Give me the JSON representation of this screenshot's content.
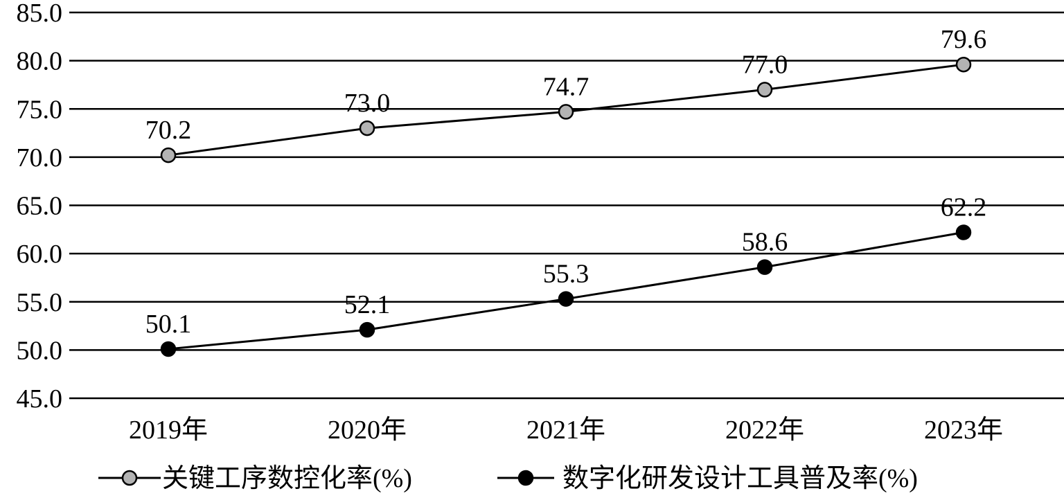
{
  "chart_data": {
    "type": "line",
    "title": "",
    "xlabel": "",
    "ylabel": "",
    "categories": [
      "2019年",
      "2020年",
      "2021年",
      "2022年",
      "2023年"
    ],
    "ylim": [
      45.0,
      85.0
    ],
    "yticks": [
      "45.0",
      "50.0",
      "55.0",
      "60.0",
      "65.0",
      "70.0",
      "75.0",
      "80.0",
      "85.0"
    ],
    "grid": "horizontal",
    "legend_position": "bottom",
    "series": [
      {
        "name": "关键工序数控化率(%)",
        "values": [
          70.2,
          73.0,
          74.7,
          77.0,
          79.6
        ],
        "labels": [
          "70.2",
          "73.0",
          "74.7",
          "77.0",
          "79.6"
        ],
        "marker_color": "#b3b3b3"
      },
      {
        "name": "数字化研发设计工具普及率(%)",
        "values": [
          50.1,
          52.1,
          55.3,
          58.6,
          62.2
        ],
        "labels": [
          "50.1",
          "52.1",
          "55.3",
          "58.6",
          "62.2"
        ],
        "marker_color": "#000000"
      }
    ]
  }
}
